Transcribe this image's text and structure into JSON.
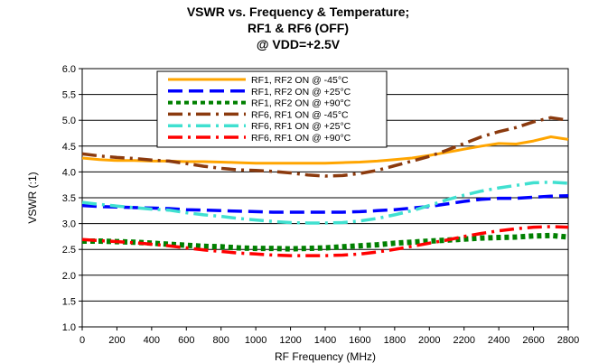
{
  "chart_data": {
    "type": "line",
    "title_lines": [
      "VSWR vs. Frequency & Temperature;",
      "RF1 & RF6 (OFF)",
      "@ VDD=+2.5V"
    ],
    "xlabel": "RF Frequency (MHz)",
    "ylabel": "VSWR (:1)",
    "xlim": [
      0,
      2800
    ],
    "ylim": [
      1.0,
      6.0
    ],
    "xticks": [
      0,
      200,
      400,
      600,
      800,
      1000,
      1200,
      1400,
      1600,
      1800,
      2000,
      2200,
      2400,
      2600,
      2800
    ],
    "yticks": [
      "1.0",
      "1.5",
      "2.0",
      "2.5",
      "3.0",
      "3.5",
      "4.0",
      "4.5",
      "5.0",
      "5.5",
      "6.0"
    ],
    "grid": "horizontal",
    "legend_position": "top-center",
    "series": [
      {
        "name": "RF1, RF2 ON @ -45°C",
        "color": "#FFA500",
        "style": "solid",
        "x": [
          0,
          100,
          200,
          300,
          400,
          500,
          600,
          700,
          800,
          900,
          1000,
          1100,
          1200,
          1300,
          1400,
          1500,
          1600,
          1700,
          1800,
          1900,
          2000,
          2100,
          2200,
          2300,
          2400,
          2500,
          2600,
          2700,
          2800
        ],
        "y": [
          4.27,
          4.24,
          4.22,
          4.22,
          4.21,
          4.21,
          4.2,
          4.2,
          4.19,
          4.18,
          4.17,
          4.17,
          4.17,
          4.17,
          4.17,
          4.18,
          4.19,
          4.21,
          4.24,
          4.27,
          4.32,
          4.38,
          4.44,
          4.5,
          4.55,
          4.54,
          4.6,
          4.68,
          4.63
        ]
      },
      {
        "name": "RF1, RF2 ON @ +25°C",
        "color": "#0000FF",
        "style": "dash",
        "x": [
          0,
          100,
          200,
          300,
          400,
          500,
          600,
          700,
          800,
          900,
          1000,
          1100,
          1200,
          1300,
          1400,
          1500,
          1600,
          1700,
          1800,
          1900,
          2000,
          2100,
          2200,
          2300,
          2400,
          2500,
          2600,
          2700,
          2800
        ],
        "y": [
          3.35,
          3.33,
          3.32,
          3.31,
          3.3,
          3.29,
          3.27,
          3.26,
          3.25,
          3.24,
          3.23,
          3.22,
          3.22,
          3.22,
          3.22,
          3.22,
          3.23,
          3.25,
          3.27,
          3.3,
          3.33,
          3.38,
          3.43,
          3.47,
          3.49,
          3.49,
          3.51,
          3.53,
          3.54
        ]
      },
      {
        "name": "RF1, RF2 ON @ +90°C",
        "color": "#008000",
        "style": "dot",
        "x": [
          0,
          100,
          200,
          300,
          400,
          500,
          600,
          700,
          800,
          900,
          1000,
          1100,
          1200,
          1300,
          1400,
          1500,
          1600,
          1700,
          1800,
          1900,
          2000,
          2100,
          2200,
          2300,
          2400,
          2500,
          2600,
          2700,
          2800
        ],
        "y": [
          2.66,
          2.66,
          2.65,
          2.64,
          2.62,
          2.6,
          2.58,
          2.56,
          2.55,
          2.53,
          2.52,
          2.52,
          2.51,
          2.52,
          2.53,
          2.55,
          2.57,
          2.59,
          2.62,
          2.64,
          2.66,
          2.68,
          2.7,
          2.72,
          2.73,
          2.74,
          2.76,
          2.77,
          2.74
        ]
      },
      {
        "name": "RF6, RF1 ON @ -45°C",
        "color": "#8B3A0E",
        "style": "dashdot",
        "x": [
          0,
          100,
          200,
          300,
          400,
          500,
          600,
          700,
          800,
          900,
          1000,
          1100,
          1200,
          1300,
          1400,
          1500,
          1600,
          1700,
          1800,
          1900,
          2000,
          2100,
          2200,
          2300,
          2400,
          2500,
          2600,
          2700,
          2800
        ],
        "y": [
          4.35,
          4.31,
          4.28,
          4.26,
          4.23,
          4.21,
          4.16,
          4.11,
          4.07,
          4.04,
          4.03,
          4.01,
          3.98,
          3.94,
          3.92,
          3.93,
          3.97,
          4.03,
          4.12,
          4.21,
          4.3,
          4.42,
          4.55,
          4.68,
          4.78,
          4.86,
          4.97,
          5.05,
          5.0
        ]
      },
      {
        "name": "RF6, RF1 ON @ +25°C",
        "color": "#40E0D0",
        "style": "dashdot",
        "x": [
          0,
          100,
          200,
          300,
          400,
          500,
          600,
          700,
          800,
          900,
          1000,
          1100,
          1200,
          1300,
          1400,
          1500,
          1600,
          1700,
          1800,
          1900,
          2000,
          2100,
          2200,
          2300,
          2400,
          2500,
          2600,
          2700,
          2800
        ],
        "y": [
          3.41,
          3.37,
          3.34,
          3.31,
          3.28,
          3.26,
          3.21,
          3.17,
          3.14,
          3.1,
          3.07,
          3.04,
          3.02,
          3.01,
          3.01,
          3.02,
          3.05,
          3.1,
          3.17,
          3.25,
          3.35,
          3.46,
          3.55,
          3.63,
          3.69,
          3.74,
          3.79,
          3.8,
          3.78
        ]
      },
      {
        "name": "RF6, RF1 ON @ +90°C",
        "color": "#FF0000",
        "style": "dashdot",
        "x": [
          0,
          100,
          200,
          300,
          400,
          500,
          600,
          700,
          800,
          900,
          1000,
          1100,
          1200,
          1300,
          1400,
          1500,
          1600,
          1700,
          1800,
          1900,
          2000,
          2100,
          2200,
          2300,
          2400,
          2500,
          2600,
          2700,
          2800
        ],
        "y": [
          2.69,
          2.67,
          2.65,
          2.63,
          2.6,
          2.57,
          2.53,
          2.49,
          2.46,
          2.43,
          2.41,
          2.39,
          2.38,
          2.38,
          2.38,
          2.39,
          2.41,
          2.45,
          2.5,
          2.56,
          2.62,
          2.68,
          2.75,
          2.81,
          2.86,
          2.9,
          2.93,
          2.94,
          2.93
        ]
      }
    ]
  }
}
